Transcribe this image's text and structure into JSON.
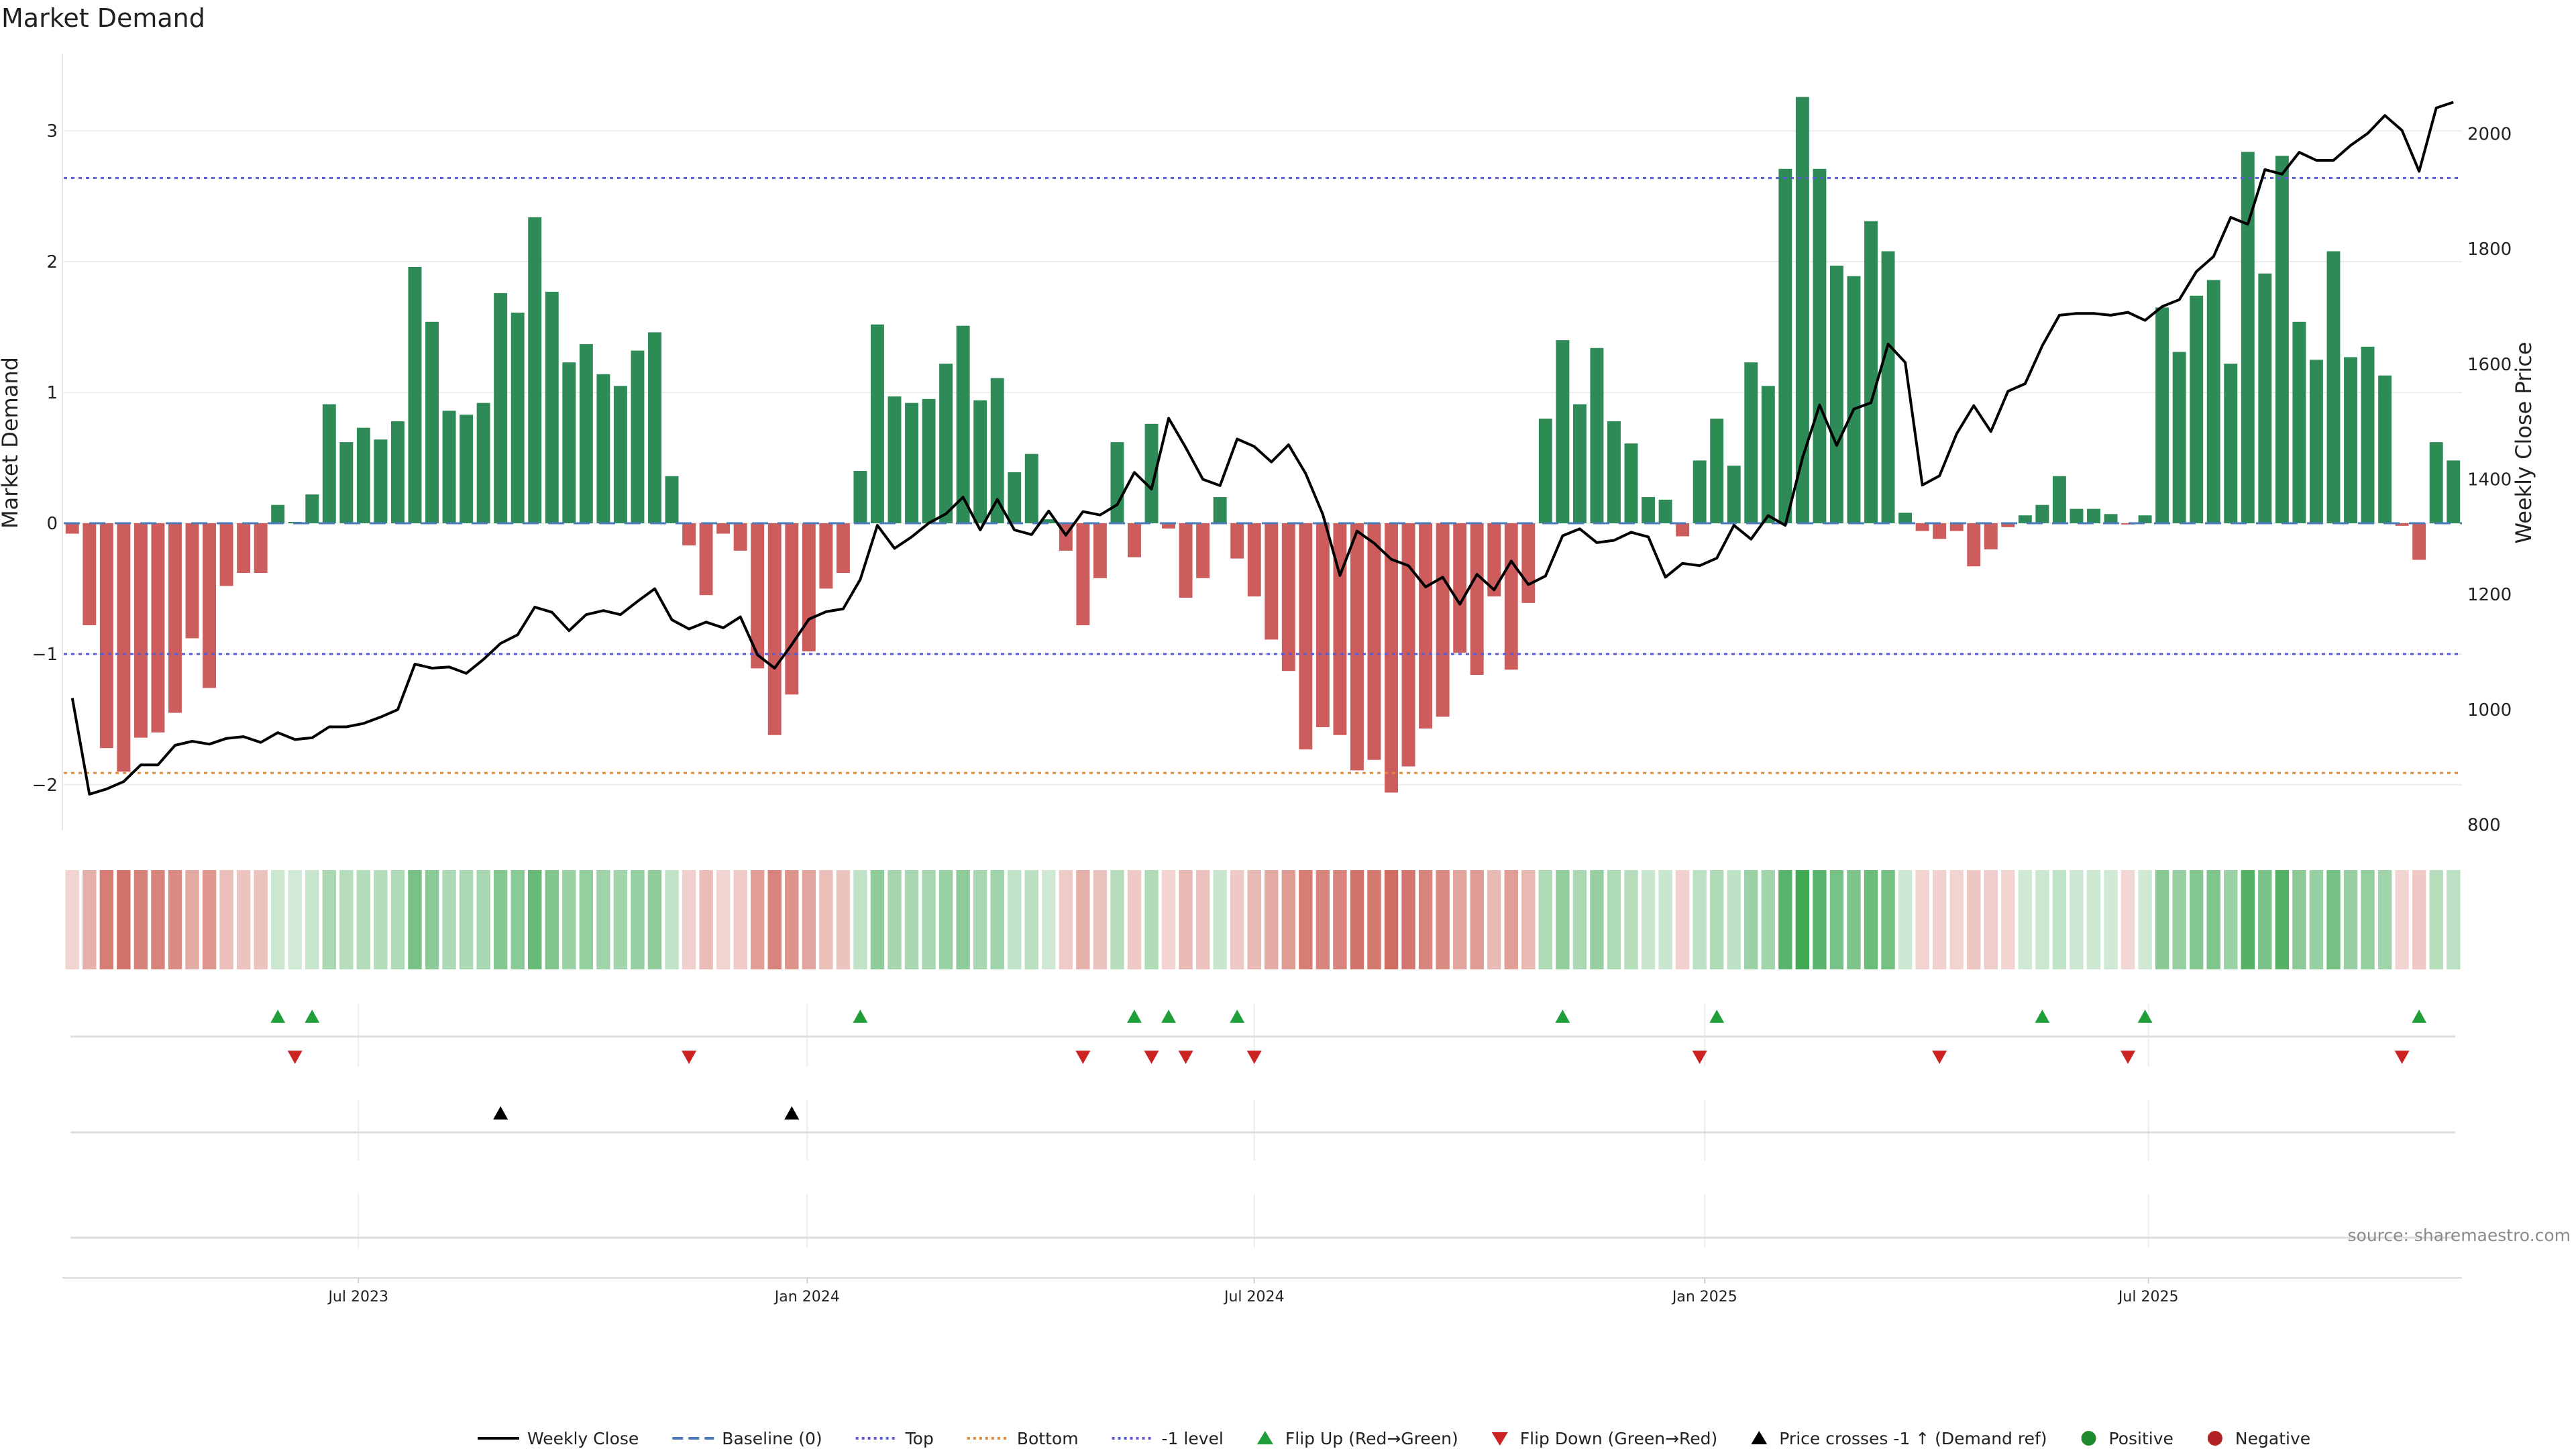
{
  "chart_data": {
    "type": "bar",
    "title": "Market Demand",
    "ylabel": "Market Demand",
    "y2label": "Weekly Close Price",
    "ylim": [
      -2.35,
      3.55
    ],
    "y2lim": [
      790,
      2130
    ],
    "yticks": [
      "−2",
      "−1",
      "0",
      "1",
      "2",
      "3"
    ],
    "y2ticks": [
      "800",
      "1000",
      "1200",
      "1400",
      "1600",
      "1800",
      "2000"
    ],
    "date_ticks": [
      "Jul 2023",
      "Jan 2024",
      "Jul 2024",
      "Jan 2025",
      "Jul 2025"
    ],
    "levels": {
      "top": 2.64,
      "bottom": -1.91,
      "minus_one": -1.0,
      "baseline": 0
    },
    "colors": {
      "positive": "#2e8b57",
      "negative": "#cd5c5c",
      "price": "#000000",
      "top_line": "#5b5bd6",
      "bottom_line": "#e08a3c",
      "baseline": "#4a7ab8",
      "flip_up": "#1f9e3a",
      "flip_down": "#cc2222",
      "cross": "#000000"
    },
    "series": [
      {
        "name": "Market Demand",
        "values": [
          -0.08,
          -0.78,
          -1.72,
          -1.9,
          -1.64,
          -1.6,
          -1.45,
          -0.88,
          -1.26,
          -0.48,
          -0.38,
          -0.38,
          0.14,
          0.01,
          0.22,
          0.91,
          0.62,
          0.73,
          0.64,
          0.78,
          1.96,
          1.54,
          0.86,
          0.83,
          0.92,
          1.76,
          1.61,
          2.34,
          1.77,
          1.23,
          1.37,
          1.14,
          1.05,
          1.32,
          1.46,
          0.36,
          -0.17,
          -0.55,
          -0.08,
          -0.21,
          -1.11,
          -1.62,
          -1.31,
          -0.98,
          -0.5,
          -0.38,
          0.4,
          1.52,
          0.97,
          0.92,
          0.95,
          1.22,
          1.51,
          0.94,
          1.11,
          0.39,
          0.53,
          0.03,
          -0.21,
          -0.78,
          -0.42,
          0.62,
          -0.26,
          0.76,
          -0.04,
          -0.57,
          -0.42,
          0.2,
          -0.27,
          -0.56,
          -0.89,
          -1.13,
          -1.73,
          -1.56,
          -1.62,
          -1.89,
          -1.81,
          -2.06,
          -1.86,
          -1.57,
          -1.48,
          -0.99,
          -1.16,
          -0.56,
          -1.12,
          -0.61,
          0.8,
          1.4,
          0.91,
          1.34,
          0.78,
          0.61,
          0.2,
          0.18,
          -0.1,
          0.48,
          0.8,
          0.44,
          1.23,
          1.05,
          2.71,
          3.26,
          2.71,
          1.97,
          1.89,
          2.31,
          2.08,
          0.08,
          -0.06,
          -0.12,
          -0.06,
          -0.33,
          -0.2,
          -0.03,
          0.06,
          0.14,
          0.36,
          0.11,
          0.11,
          0.07,
          -0.01,
          0.06,
          1.65,
          1.31,
          1.74,
          1.86,
          1.22,
          2.84,
          1.91,
          2.81,
          1.54,
          1.25,
          2.08,
          1.27,
          1.35,
          1.13,
          -0.02,
          -0.28,
          0.62,
          0.48
        ]
      },
      {
        "name": "Weekly Close",
        "values": [
          1020,
          853,
          862,
          875,
          904,
          904,
          938,
          945,
          940,
          950,
          953,
          943,
          960,
          948,
          951,
          970,
          970,
          976,
          987,
          1000,
          1079,
          1072,
          1074,
          1063,
          1087,
          1115,
          1130,
          1178,
          1169,
          1137,
          1165,
          1172,
          1165,
          1188,
          1210,
          1156,
          1140,
          1152,
          1142,
          1161,
          1095,
          1072,
          1113,
          1157,
          1170,
          1175,
          1226,
          1320,
          1280,
          1300,
          1324,
          1340,
          1369,
          1312,
          1365,
          1312,
          1304,
          1345,
          1303,
          1344,
          1338,
          1356,
          1412,
          1383,
          1506,
          1455,
          1400,
          1389,
          1470,
          1457,
          1430,
          1460,
          1410,
          1339,
          1233,
          1310,
          1289,
          1261,
          1250,
          1213,
          1230,
          1183,
          1235,
          1208,
          1258,
          1217,
          1232,
          1302,
          1314,
          1290,
          1294,
          1308,
          1300,
          1230,
          1254,
          1250,
          1263,
          1320,
          1296,
          1337,
          1320,
          1437,
          1529,
          1459,
          1522,
          1533,
          1635,
          1603,
          1390,
          1406,
          1479,
          1528,
          1483,
          1553,
          1566,
          1632,
          1685,
          1688,
          1688,
          1685,
          1690,
          1676,
          1700,
          1712,
          1761,
          1787,
          1855,
          1843,
          1938,
          1930,
          1968,
          1954,
          1954,
          1980,
          2001,
          2032,
          2006,
          1935,
          2045,
          2055
        ]
      }
    ],
    "flip_up_indices": [
      12,
      14,
      46,
      62,
      64,
      68,
      87,
      96,
      115,
      121,
      137
    ],
    "flip_down_indices": [
      13,
      36,
      59,
      63,
      65,
      69,
      95,
      109,
      120,
      136
    ],
    "price_cross_indices": [
      25,
      42
    ],
    "legend": [
      {
        "label": "Weekly Close",
        "kind": "line-solid"
      },
      {
        "label": "Baseline (0)",
        "kind": "line-dashed"
      },
      {
        "label": "Top",
        "kind": "line-dotted-top"
      },
      {
        "label": "Bottom",
        "kind": "line-dotted-bottom"
      },
      {
        "label": "-1 level",
        "kind": "line-dotted-minus"
      },
      {
        "label": "Flip Up (Red→Green)",
        "kind": "tri-up-green"
      },
      {
        "label": "Flip Down (Green→Red)",
        "kind": "tri-down-red"
      },
      {
        "label": "Price crosses -1 ↑ (Demand ref)",
        "kind": "tri-up-black"
      },
      {
        "label": "Positive",
        "kind": "dot-green"
      },
      {
        "label": "Negative",
        "kind": "dot-red"
      }
    ],
    "legend_position": "bottom",
    "grid": true
  },
  "source": "source: sharemaestro.com"
}
